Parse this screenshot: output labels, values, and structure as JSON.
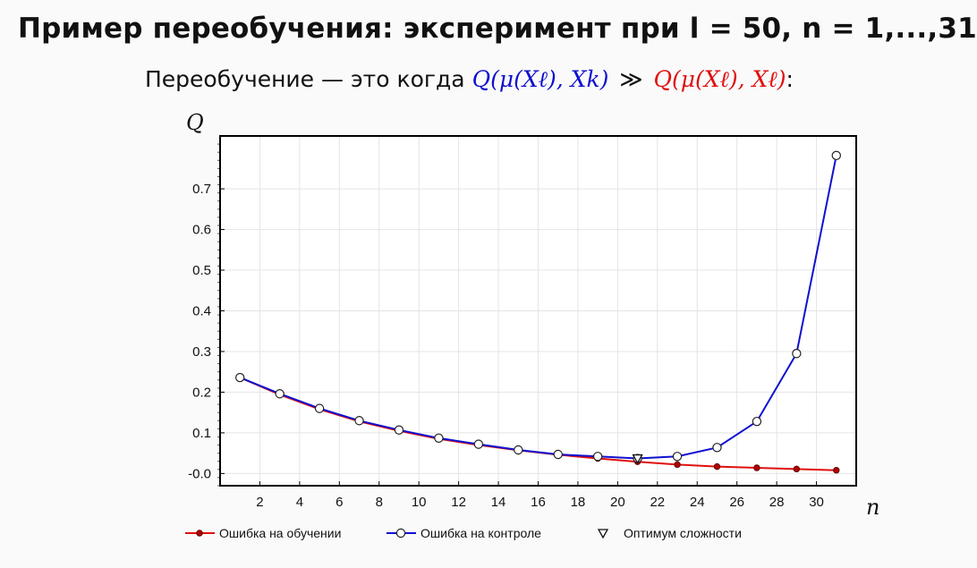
{
  "slide": {
    "title": "Пример переобучения: эксперимент при l = 50, n = 1,...,31",
    "subtitle_prefix": "Переобучение — это когда",
    "formula_left": "Q(μ(Xℓ), Xk)",
    "formula_relation": "≫",
    "formula_right": "Q(μ(Xℓ), Xℓ)",
    "formula_suffix": ":"
  },
  "colors": {
    "train": "#e01010",
    "test": "#1010d0",
    "left_formula": "#1010d0",
    "right_formula": "#e01010"
  },
  "chart_data": {
    "type": "line",
    "title": "",
    "xlabel": "n",
    "ylabel": "Q",
    "xlim": [
      0,
      32
    ],
    "ylim": [
      -0.03,
      0.83
    ],
    "x_ticks": [
      2,
      4,
      6,
      8,
      10,
      12,
      14,
      16,
      18,
      20,
      22,
      24,
      26,
      28,
      30
    ],
    "y_ticks": [
      0.0,
      0.1,
      0.2,
      0.3,
      0.4,
      0.5,
      0.6,
      0.7
    ],
    "y_tick_labels": [
      "-0.0",
      "0.1",
      "0.2",
      "0.3",
      "0.4",
      "0.5",
      "0.6",
      "0.7"
    ],
    "grid": true,
    "legend_position": "bottom",
    "series": [
      {
        "name": "Ошибка на обучении",
        "marker": "filled-circle",
        "x": [
          1,
          3,
          5,
          7,
          9,
          11,
          13,
          15,
          17,
          19,
          21,
          23,
          25,
          27,
          29,
          31
        ],
        "y": [
          0.236,
          0.194,
          0.158,
          0.128,
          0.105,
          0.085,
          0.07,
          0.057,
          0.046,
          0.037,
          0.029,
          0.022,
          0.017,
          0.014,
          0.011,
          0.008
        ]
      },
      {
        "name": "Ошибка на контроле",
        "marker": "open-circle",
        "x": [
          1,
          3,
          5,
          7,
          9,
          11,
          13,
          15,
          17,
          19,
          21,
          23,
          25,
          27,
          29,
          31
        ],
        "y": [
          0.236,
          0.196,
          0.16,
          0.13,
          0.107,
          0.087,
          0.072,
          0.058,
          0.047,
          0.042,
          0.037,
          0.042,
          0.064,
          0.128,
          0.295,
          0.782
        ]
      }
    ],
    "optimum": {
      "name": "Оптимум сложности",
      "x": 21,
      "y": 0.037
    }
  }
}
